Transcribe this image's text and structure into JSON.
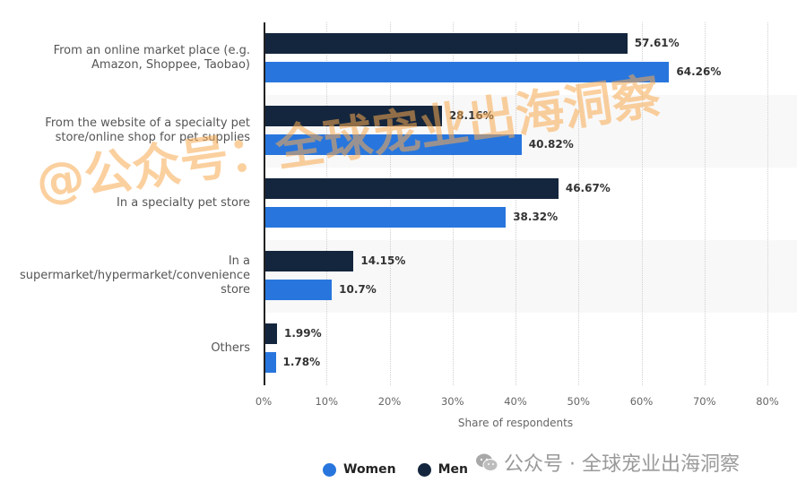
{
  "chart_data": {
    "type": "bar",
    "orientation": "horizontal",
    "title": "",
    "xlabel": "Share of respondents",
    "ylabel": "",
    "xlim": [
      0,
      80
    ],
    "x_ticks": [
      "0%",
      "10%",
      "20%",
      "30%",
      "40%",
      "50%",
      "60%",
      "70%",
      "80%"
    ],
    "grid": true,
    "legend_position": "bottom",
    "categories": [
      "From an online market place (e.g. Amazon, Shoppee, Taobao)",
      "From the website of a specialty pet store/online shop for pet supplies",
      "In a specialty pet store",
      "In a supermarket/hypermarket/convenience store",
      "Others"
    ],
    "series": [
      {
        "name": "Men",
        "color": "#14263d",
        "values": [
          57.61,
          28.16,
          46.67,
          14.15,
          1.99
        ]
      },
      {
        "name": "Women",
        "color": "#2876dd",
        "values": [
          64.26,
          40.82,
          38.32,
          10.7,
          1.78
        ]
      }
    ]
  },
  "labels": {
    "cat0": [
      "From an online market place (e.g.",
      "Amazon, Shoppee, Taobao)"
    ],
    "cat1": [
      "From the website of a specialty pet",
      "store/online shop for pet supplies"
    ],
    "cat2": [
      "In a specialty pet store"
    ],
    "cat3": [
      "In a",
      "supermarket/hypermarket/convenience",
      "store"
    ],
    "cat4": [
      "Others"
    ]
  },
  "value_labels": {
    "men": [
      "57.61%",
      "28.16%",
      "46.67%",
      "14.15%",
      "1.99%"
    ],
    "women": [
      "64.26%",
      "40.82%",
      "38.32%",
      "10.7%",
      "1.78%"
    ]
  },
  "legend": {
    "women": "Women",
    "men": "Men"
  },
  "watermark": {
    "big": "@公众号：全球宠业出海洞察",
    "small": "公众号 · 全球宠业出海洞察"
  }
}
